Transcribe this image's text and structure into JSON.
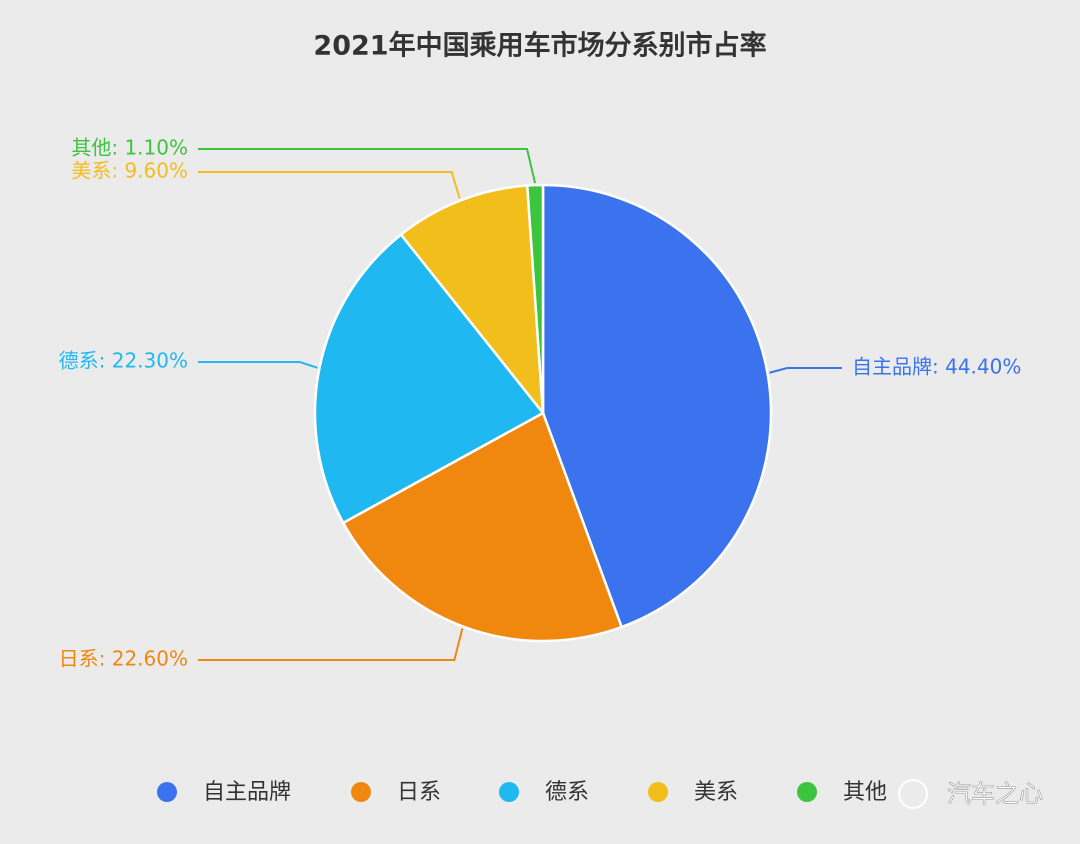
{
  "chart_data": {
    "type": "pie",
    "title": "2021年中国乘用车市场分系别市占率",
    "categories": [
      "自主品牌",
      "日系",
      "德系",
      "美系",
      "其他"
    ],
    "values": [
      44.4,
      22.6,
      22.3,
      9.6,
      1.1
    ],
    "value_labels": [
      "自主品牌: 44.40%",
      "日系: 22.60%",
      "德系: 22.30%",
      "美系: 9.60%",
      "其他: 1.10%"
    ],
    "colors": [
      "#3b73ee",
      "#f0870f",
      "#20b8f0",
      "#f1be1c",
      "#3cc43c"
    ],
    "legend": "bottom",
    "watermark": "汽车之心"
  }
}
